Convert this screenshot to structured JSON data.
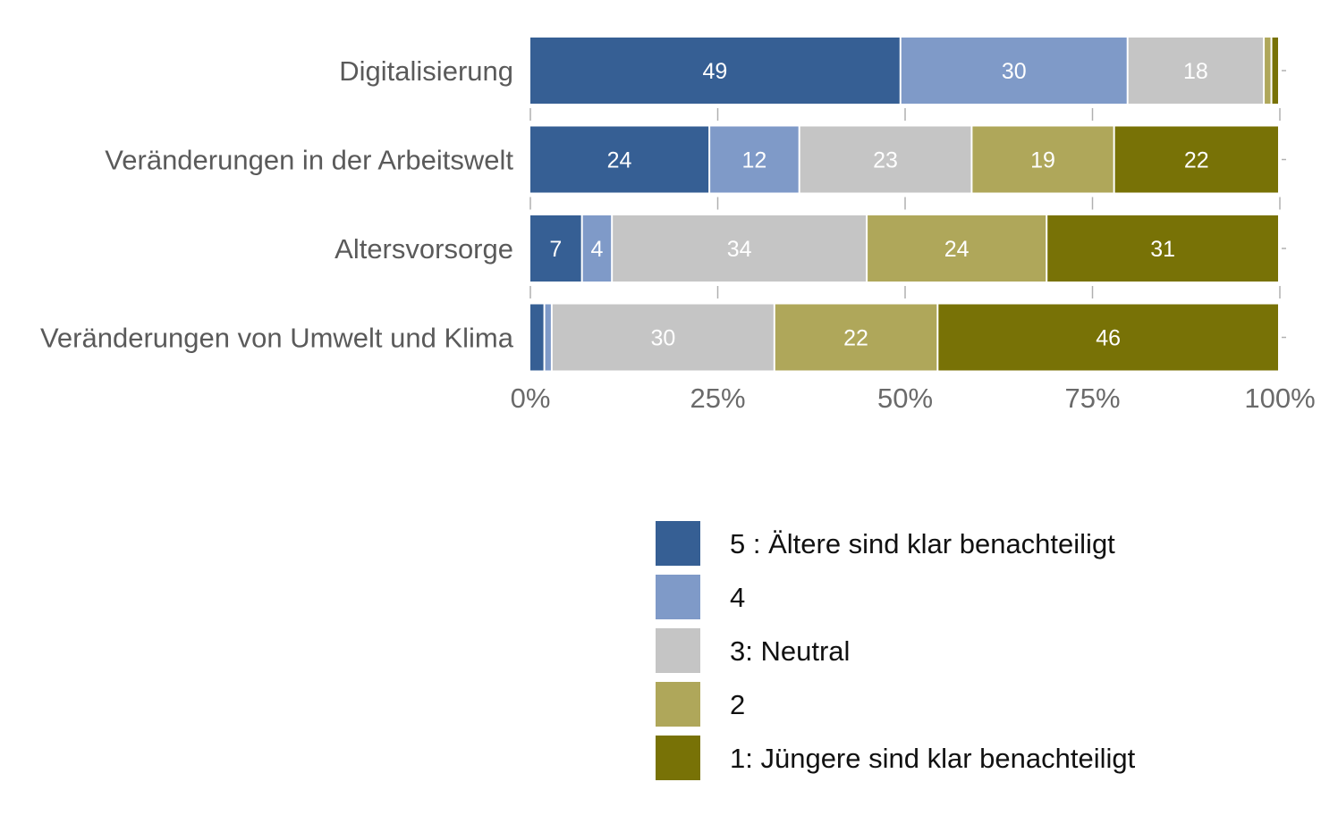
{
  "chart_data": {
    "type": "bar",
    "orientation": "horizontal",
    "stacked": "percent",
    "title": "",
    "xlabel": "",
    "ylabel": "",
    "xlim": [
      0,
      100
    ],
    "x_ticks": [
      0,
      25,
      50,
      75,
      100
    ],
    "x_tick_labels": [
      "0%",
      "25%",
      "50%",
      "75%",
      "100%"
    ],
    "grid": false,
    "legend_position": "bottom",
    "categories": [
      "Digitalisierung",
      "Veränderungen in der Arbeitswelt",
      "Altersvorsorge",
      "Veränderungen von Umwelt und Klima"
    ],
    "series": [
      {
        "name": "5 : Ältere sind klar benachteiligt",
        "color": "#365F94",
        "values": [
          49,
          24,
          7,
          2
        ]
      },
      {
        "name": "4",
        "color": "#7F9AC8",
        "values": [
          30,
          12,
          4,
          1
        ]
      },
      {
        "name": "3: Neutral",
        "color": "#C5C5C5",
        "values": [
          18,
          23,
          34,
          30
        ]
      },
      {
        "name": "2",
        "color": "#AFA75A",
        "values": [
          1,
          19,
          24,
          22
        ]
      },
      {
        "name": "1: Jüngere sind klar benachteiligt",
        "color": "#787206",
        "values": [
          1,
          22,
          31,
          46
        ]
      }
    ],
    "data_label_min_value": 4
  }
}
